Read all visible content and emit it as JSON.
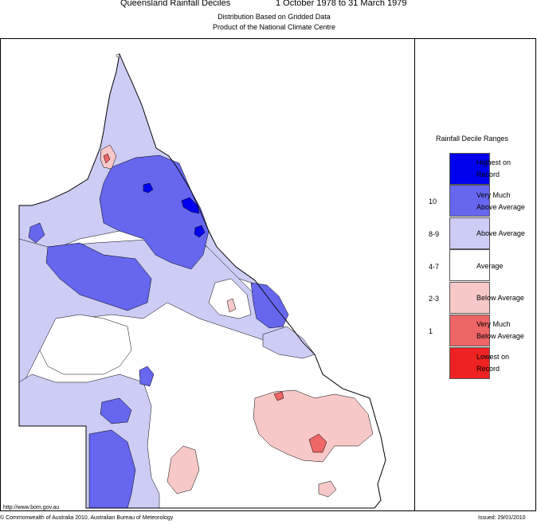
{
  "header": {
    "title": "Queensland Rainfall Deciles",
    "period": "1 October 1978 to 31 March 1979",
    "subtitle1": "Distribution Based on Gridded Data",
    "subtitle2": "Product of the National Climate Centre"
  },
  "legend": {
    "title": "Rainfall Decile Ranges",
    "items": [
      {
        "range": "",
        "label_line1": "Highest on",
        "label_line2": "Record",
        "color": "#0000ee"
      },
      {
        "range": "10",
        "label_line1": "Very Much",
        "label_line2": "Above Average",
        "color": "#6666ee"
      },
      {
        "range": "8-9",
        "label_line1": "Above Average",
        "label_line2": "",
        "color": "#ccccf5"
      },
      {
        "range": "4-7",
        "label_line1": "Average",
        "label_line2": "",
        "color": "#ffffff"
      },
      {
        "range": "2-3",
        "label_line1": "Below Average",
        "label_line2": "",
        "color": "#f8c8c8"
      },
      {
        "range": "1",
        "label_line1": "Very Much",
        "label_line2": "Below Average",
        "color": "#ee6666"
      },
      {
        "range": "",
        "label_line1": "Lowest on",
        "label_line2": "Record",
        "color": "#ee2222"
      }
    ]
  },
  "footer": {
    "url": "http://www.bom.gov.au",
    "copyright": "© Commonwealth of Australia 2010, Australian Bureau of Meteorology",
    "issued": "Issued: 29/01/2010"
  }
}
